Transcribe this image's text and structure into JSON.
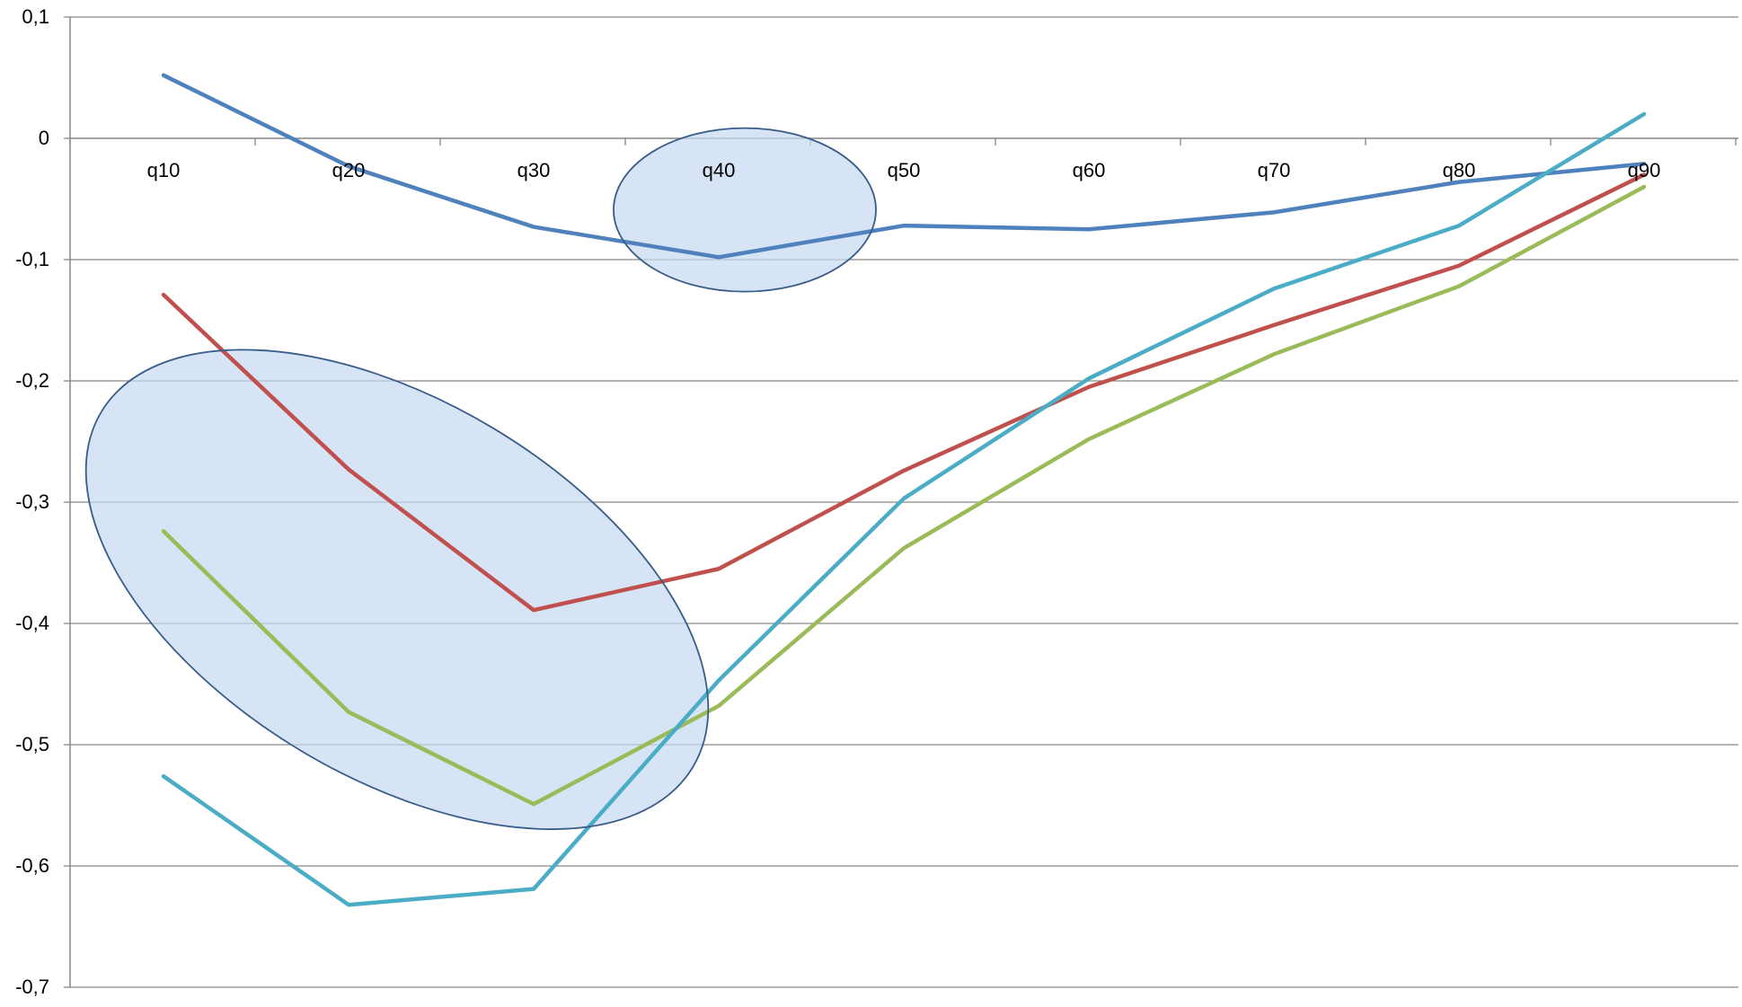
{
  "chart_data": {
    "type": "line",
    "categories": [
      "q10",
      "q20",
      "q30",
      "q40",
      "q50",
      "q60",
      "q70",
      "q80",
      "q90"
    ],
    "y_tick_labels": [
      "0,1",
      "0",
      "-0,1",
      "-0,2",
      "-0,3",
      "-0,4",
      "-0,5",
      "-0,6",
      "-0,7"
    ],
    "y_ticks": [
      0.1,
      0,
      -0.1,
      -0.2,
      -0.3,
      -0.4,
      -0.5,
      -0.6,
      -0.7
    ],
    "ylim": [
      -0.7,
      0.1
    ],
    "grid": true,
    "series": [
      {
        "color": "#4F81BD",
        "values": [
          0.052,
          -0.023,
          -0.073,
          -0.098,
          -0.072,
          -0.075,
          -0.061,
          -0.036,
          -0.021
        ]
      },
      {
        "color": "#C0504D",
        "values": [
          -0.129,
          -0.273,
          -0.389,
          -0.355,
          -0.274,
          -0.205,
          -0.154,
          -0.105,
          -0.03
        ]
      },
      {
        "color": "#9BBB59",
        "values": [
          -0.324,
          -0.473,
          -0.549,
          -0.468,
          -0.338,
          -0.248,
          -0.178,
          -0.122,
          -0.04
        ]
      },
      {
        "color": "#4BACC6",
        "values": [
          -0.526,
          -0.632,
          -0.619,
          -0.447,
          -0.297,
          -0.198,
          -0.124,
          -0.072,
          0.02
        ]
      }
    ],
    "highlights": [
      {
        "shape": "ellipse",
        "center": [
          "q40",
          -0.059
        ],
        "fill": "#C6D9F1",
        "stroke": "#385D8A"
      },
      {
        "shape": "ellipse",
        "center": [
          "q20",
          -0.372
        ],
        "fill": "#C6D9F1",
        "stroke": "#385D8A"
      }
    ],
    "gridline_color": "#868686",
    "axis_color": "#868686"
  }
}
